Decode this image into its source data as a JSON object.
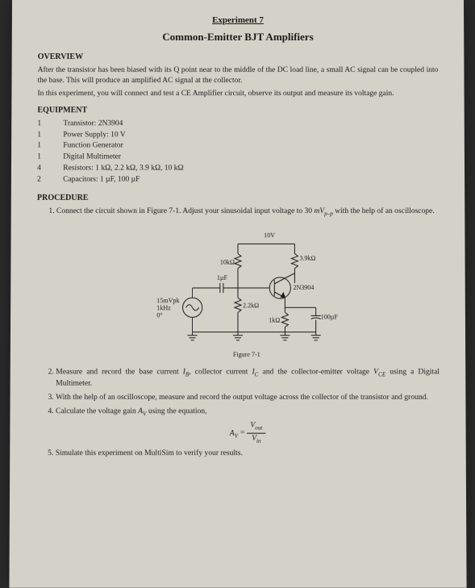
{
  "header": {
    "expLabel": "Experiment 7",
    "title": "Common-Emitter BJT Amplifiers"
  },
  "overview": {
    "heading": "OVERVIEW",
    "para1": "After the transistor has been biased with its Q point near to the middle of the DC load line, a small AC signal can be coupled into the base. This will produce an amplified AC signal at the collector.",
    "para2": "In this experiment, you will connect and test a CE Amplifier circuit, observe its output and measure its voltage gain."
  },
  "equipment": {
    "heading": "EQUIPMENT",
    "items": [
      {
        "qty": "1",
        "name": "Transistor: 2N3904"
      },
      {
        "qty": "1",
        "name": "Power Supply: 10 V"
      },
      {
        "qty": "1",
        "name": "Function Generator"
      },
      {
        "qty": "1",
        "name": "Digital Multimeter"
      },
      {
        "qty": "4",
        "name": "Resistors: 1 kΩ, 2.2 kΩ, 3.9 kΩ, 10 kΩ"
      },
      {
        "qty": "2",
        "name": "Capacitors: 1 µF, 100 µF"
      }
    ]
  },
  "procedure": {
    "heading": "PROCEDURE",
    "step1a": "Connect the circuit shown in Figure 7-1. Adjust your sinusoidal input voltage to 30 ",
    "step1b": " with the help of an oscilloscope.",
    "step2a": "Measure and record the base current ",
    "step2b": ", collector current ",
    "step2c": " and the collector-emitter voltage ",
    "step2d": " using a Digital Multimeter.",
    "step3": "With the help of an oscilloscope, measure and record the output voltage across the collector of the transistor and ground.",
    "step4": "Calculate the voltage gain ",
    "step4b": " using the equation,",
    "step5": "Simulate this experiment on MultiSim to verify your results."
  },
  "formula": {
    "lhs": "A",
    "lhsSub": "V",
    "eq": " = ",
    "numTop": "V",
    "numTopSub": "out",
    "numBot": "V",
    "numBotSub": "in"
  },
  "circuit": {
    "caption": "Figure 7-1",
    "labels": {
      "vcc": "10V",
      "r1": "10kΩ",
      "r2": "3.9kΩ",
      "rb": "2.2kΩ",
      "re": "1kΩ",
      "ce": "100µF",
      "cin": "1µF",
      "q": "2N3904",
      "src1": "15mVpk",
      "src2": "1kHz",
      "src3": "0°"
    },
    "colors": {
      "stroke": "#1a1a1a",
      "bg": "transparent"
    }
  }
}
